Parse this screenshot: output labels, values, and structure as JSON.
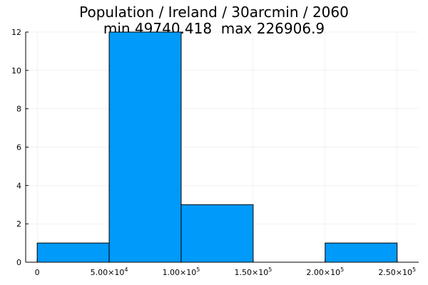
{
  "chart_data": {
    "type": "bar",
    "title": "Population / Ireland / 30arcmin / 2060",
    "subtitle": "min 49740.418  max 226906.9",
    "bins": [
      {
        "x0": 0,
        "x1": 50000,
        "count": 1
      },
      {
        "x0": 50000,
        "x1": 100000,
        "count": 12
      },
      {
        "x0": 100000,
        "x1": 150000,
        "count": 3
      },
      {
        "x0": 150000,
        "x1": 200000,
        "count": 0
      },
      {
        "x0": 200000,
        "x1": 250000,
        "count": 1
      }
    ],
    "xlim": [
      -8000,
      265000
    ],
    "ylim": [
      0,
      12
    ],
    "yticks": [
      0,
      2,
      4,
      6,
      8,
      10,
      12
    ],
    "xticks": [
      {
        "value": 0,
        "mantissa": "0",
        "exp": ""
      },
      {
        "value": 50000,
        "mantissa": "5.00×10",
        "exp": "4"
      },
      {
        "value": 100000,
        "mantissa": "1.00×10",
        "exp": "5"
      },
      {
        "value": 150000,
        "mantissa": "1.50×10",
        "exp": "5"
      },
      {
        "value": 200000,
        "mantissa": "2.00×10",
        "exp": "5"
      },
      {
        "value": 250000,
        "mantissa": "2.50×10",
        "exp": "5"
      }
    ],
    "xlabel": "",
    "ylabel": "",
    "grid": true,
    "legend": "none",
    "bar_color": "#009AFA",
    "bar_edge_color": "#000000"
  }
}
